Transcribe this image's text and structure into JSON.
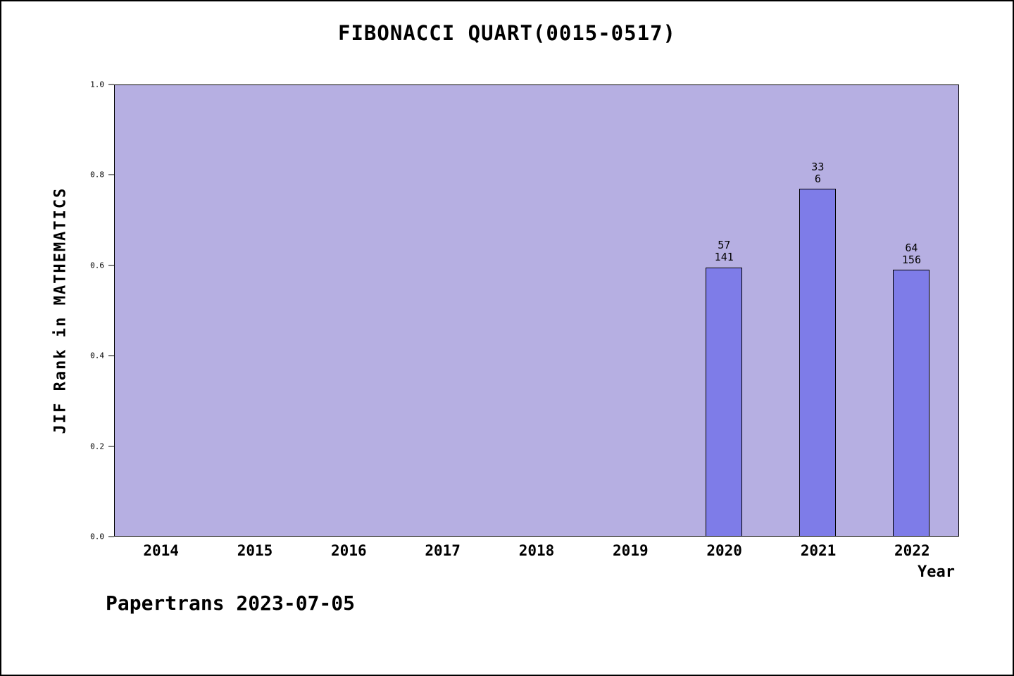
{
  "footer": {
    "text": "Papertrans 2023-07-05"
  },
  "chart_data": {
    "type": "bar",
    "title": "FIBONACCI QUART(0015-0517)",
    "xlabel": "Year",
    "ylabel": "JIF Rank in MATHEMATICS",
    "categories": [
      "2014",
      "2015",
      "2016",
      "2017",
      "2018",
      "2019",
      "2020",
      "2021",
      "2022"
    ],
    "values": [
      null,
      null,
      null,
      null,
      null,
      null,
      0.596,
      0.77,
      0.59
    ],
    "bars": [
      {
        "category": "2020",
        "value": 0.596,
        "label_top": "57",
        "label_bottom": "141"
      },
      {
        "category": "2021",
        "value": 0.77,
        "label_top": "33",
        "label_bottom": "6"
      },
      {
        "category": "2022",
        "value": 0.59,
        "label_top": "64",
        "label_bottom": "156"
      }
    ],
    "ylim": [
      0.0,
      1.0
    ],
    "yticks": [
      "0.0",
      "0.2",
      "0.4",
      "0.6",
      "0.8",
      "1.0"
    ],
    "grid": false,
    "legend": false,
    "colors": {
      "plot_bg": "#b6afe2",
      "bar_fill": "#7e7ce8",
      "bar_edge": "#000000",
      "text": "#000000"
    }
  }
}
